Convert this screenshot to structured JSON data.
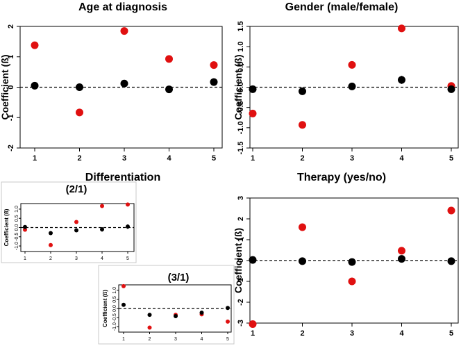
{
  "page": {
    "titles": {
      "age": "Age at diagnosis",
      "gender": "Gender (male/female)",
      "differentiation": "Differentiation",
      "therapy": "Therapy (yes/no)"
    }
  },
  "chart_data": [
    {
      "id": "age",
      "type": "scatter",
      "title": "",
      "ylabel": "Coefficient (ß)",
      "x": [
        1,
        2,
        3,
        4,
        5
      ],
      "xlim": [
        1,
        5
      ],
      "ylim": [
        -2,
        2
      ],
      "yticks": [
        -2,
        -1,
        0,
        1,
        2
      ],
      "zero_line": true,
      "series": [
        {
          "name": "black",
          "color": "#000000",
          "values": [
            0.05,
            0.0,
            0.12,
            -0.07,
            0.17
          ],
          "err": [
            0,
            0,
            0,
            0.08,
            0.12
          ]
        },
        {
          "name": "red",
          "color": "#e01010",
          "values": [
            1.38,
            -0.83,
            1.85,
            0.93,
            0.73
          ],
          "err": [
            0,
            0,
            0,
            0,
            0
          ]
        }
      ]
    },
    {
      "id": "gender",
      "type": "scatter",
      "title": "",
      "ylabel": "Coefficient (ß)",
      "x": [
        1,
        2,
        3,
        4,
        5
      ],
      "xlim": [
        1,
        5
      ],
      "ylim": [
        -1.5,
        1.5
      ],
      "yticks": [
        -1.5,
        -1.0,
        -0.5,
        0.0,
        0.5,
        1.0,
        1.5
      ],
      "zero_line": true,
      "series": [
        {
          "name": "black",
          "color": "#000000",
          "values": [
            -0.05,
            -0.1,
            0.02,
            0.18,
            -0.05
          ],
          "err": [
            0,
            0,
            0,
            0.1,
            0.08
          ]
        },
        {
          "name": "red",
          "color": "#e01010",
          "values": [
            -0.65,
            -0.93,
            0.55,
            1.45,
            0.03
          ],
          "err": [
            0,
            0,
            0,
            0,
            0
          ]
        }
      ]
    },
    {
      "id": "diff21",
      "type": "scatter",
      "title": "(2/1)",
      "ylabel": "Coefficient (ß)",
      "x": [
        1,
        2,
        3,
        4,
        5
      ],
      "xlim": [
        1,
        5
      ],
      "ylim": [
        -1.3,
        1.3
      ],
      "yticks": [
        -1.0,
        -0.5,
        0.0,
        0.5,
        1.0
      ],
      "zero_line": true,
      "series": [
        {
          "name": "black",
          "color": "#000000",
          "values": [
            0.03,
            -0.3,
            -0.15,
            -0.1,
            0.05
          ],
          "err": [
            0,
            0,
            0,
            0.12,
            0.12
          ]
        },
        {
          "name": "red",
          "color": "#e01010",
          "values": [
            -0.12,
            -0.95,
            0.3,
            1.17,
            1.25
          ],
          "err": [
            0,
            0,
            0,
            0,
            0
          ]
        }
      ]
    },
    {
      "id": "diff31",
      "type": "scatter",
      "title": "(3/1)",
      "ylabel": "Coefficient (ß)",
      "x": [
        1,
        2,
        3,
        4,
        5
      ],
      "xlim": [
        1,
        5
      ],
      "ylim": [
        -1.3,
        1.3
      ],
      "yticks": [
        -1.0,
        -0.5,
        0.0,
        0.5,
        1.0
      ],
      "zero_line": true,
      "series": [
        {
          "name": "black",
          "color": "#000000",
          "values": [
            0.2,
            -0.35,
            -0.42,
            -0.23,
            0.03
          ],
          "err": [
            0,
            0,
            0,
            0.06,
            0.1
          ]
        },
        {
          "name": "red",
          "color": "#e01010",
          "values": [
            1.23,
            -1.05,
            -0.35,
            -0.32,
            -0.72
          ],
          "err": [
            0,
            0,
            0,
            0,
            0
          ]
        }
      ]
    },
    {
      "id": "therapy",
      "type": "scatter",
      "title": "",
      "ylabel": "Coefficient (ß)",
      "x": [
        1,
        2,
        3,
        4,
        5
      ],
      "xlim": [
        1,
        5
      ],
      "ylim": [
        -3,
        3
      ],
      "yticks": [
        -3,
        -2,
        -1,
        0,
        1,
        2,
        3
      ],
      "zero_line": true,
      "series": [
        {
          "name": "black",
          "color": "#000000",
          "values": [
            0.03,
            -0.03,
            -0.07,
            0.08,
            -0.03
          ],
          "err": [
            0,
            0,
            0,
            0.1,
            0
          ]
        },
        {
          "name": "red",
          "color": "#e01010",
          "values": [
            -3.05,
            1.6,
            -1.0,
            0.47,
            2.4
          ],
          "err": [
            0,
            0,
            0,
            0,
            0
          ]
        }
      ]
    }
  ]
}
